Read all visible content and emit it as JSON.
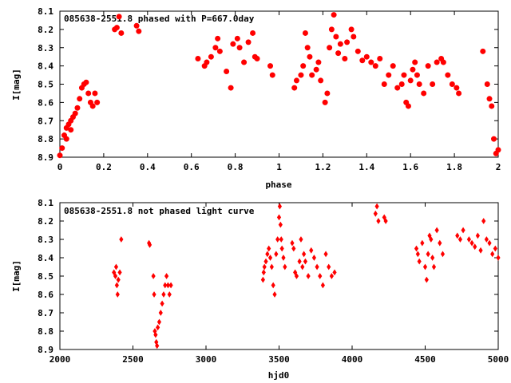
{
  "colors": {
    "points": "#ff0000",
    "axes": "#000000",
    "background": "#ffffff"
  },
  "chart_data": [
    {
      "type": "scatter",
      "title": "085638-2551.8 phased with P=667.0day",
      "xlabel": "phase",
      "ylabel": "I[mag]",
      "xlim": [
        0,
        2
      ],
      "ylim": [
        8.9,
        8.1
      ],
      "y_inverted": true,
      "grid": false,
      "legend": "none",
      "xticks": [
        0,
        0.2,
        0.4,
        0.6,
        0.8,
        1,
        1.2,
        1.4,
        1.6,
        1.8,
        2
      ],
      "xtick_labels": [
        "0",
        "0.2",
        "0.4",
        "0.6",
        "0.8",
        "1",
        "1.2",
        "1.4",
        "1.6",
        "1.8",
        "2"
      ],
      "yticks": [
        8.1,
        8.2,
        8.3,
        8.4,
        8.5,
        8.6,
        8.7,
        8.8,
        8.9
      ],
      "ytick_labels": [
        "8.1",
        "8.2",
        "8.3",
        "8.4",
        "8.5",
        "8.6",
        "8.7",
        "8.8",
        "8.9"
      ],
      "marker": "filled-circle",
      "x": [
        0.0,
        0.01,
        0.02,
        0.03,
        0.03,
        0.04,
        0.05,
        0.05,
        0.06,
        0.07,
        0.08,
        0.09,
        0.1,
        0.11,
        0.12,
        0.13,
        0.14,
        0.15,
        0.16,
        0.17,
        0.25,
        0.26,
        0.27,
        0.28,
        0.35,
        0.36,
        0.63,
        0.66,
        0.67,
        0.69,
        0.71,
        0.72,
        0.73,
        0.76,
        0.78,
        0.79,
        0.81,
        0.82,
        0.84,
        0.86,
        0.88,
        0.89,
        0.9,
        0.96,
        0.97,
        1.07,
        1.08,
        1.1,
        1.11,
        1.12,
        1.13,
        1.14,
        1.15,
        1.17,
        1.18,
        1.19,
        1.21,
        1.22,
        1.23,
        1.24,
        1.25,
        1.26,
        1.27,
        1.28,
        1.3,
        1.31,
        1.33,
        1.34,
        1.36,
        1.38,
        1.4,
        1.42,
        1.44,
        1.46,
        1.48,
        1.5,
        1.52,
        1.54,
        1.56,
        1.57,
        1.58,
        1.59,
        1.6,
        1.61,
        1.62,
        1.63,
        1.64,
        1.66,
        1.68,
        1.7,
        1.72,
        1.74,
        1.75,
        1.77,
        1.79,
        1.81,
        1.82,
        1.93,
        1.95,
        1.96,
        1.97,
        1.98,
        1.99,
        2.0
      ],
      "y": [
        8.89,
        8.85,
        8.78,
        8.8,
        8.74,
        8.72,
        8.7,
        8.75,
        8.68,
        8.66,
        8.63,
        8.58,
        8.52,
        8.5,
        8.49,
        8.55,
        8.6,
        8.62,
        8.55,
        8.6,
        8.2,
        8.19,
        8.13,
        8.22,
        8.18,
        8.21,
        8.36,
        8.4,
        8.38,
        8.35,
        8.3,
        8.25,
        8.32,
        8.43,
        8.52,
        8.28,
        8.25,
        8.3,
        8.38,
        8.27,
        8.22,
        8.35,
        8.36,
        8.4,
        8.45,
        8.52,
        8.48,
        8.45,
        8.4,
        8.22,
        8.3,
        8.35,
        8.45,
        8.42,
        8.38,
        8.48,
        8.6,
        8.55,
        8.3,
        8.2,
        8.12,
        8.24,
        8.33,
        8.28,
        8.36,
        8.27,
        8.2,
        8.24,
        8.32,
        8.37,
        8.35,
        8.38,
        8.4,
        8.36,
        8.5,
        8.45,
        8.4,
        8.52,
        8.5,
        8.45,
        8.6,
        8.62,
        8.48,
        8.42,
        8.38,
        8.45,
        8.5,
        8.55,
        8.4,
        8.5,
        8.38,
        8.36,
        8.38,
        8.45,
        8.5,
        8.52,
        8.55,
        8.32,
        8.5,
        8.58,
        8.62,
        8.8,
        8.88,
        8.86
      ]
    },
    {
      "type": "scatter",
      "title": "085638-2551.8 not phased light curve",
      "xlabel": "hjd0",
      "ylabel": "I[mag]",
      "xlim": [
        2000,
        5000
      ],
      "ylim": [
        8.9,
        8.1
      ],
      "y_inverted": true,
      "grid": false,
      "legend": "none",
      "xticks": [
        2000,
        2500,
        3000,
        3500,
        4000,
        4500,
        5000
      ],
      "xtick_labels": [
        "2000",
        "2500",
        "3000",
        "3500",
        "4000",
        "4500",
        "5000"
      ],
      "yticks": [
        8.1,
        8.2,
        8.3,
        8.4,
        8.5,
        8.6,
        8.7,
        8.8,
        8.9
      ],
      "ytick_labels": [
        "8.1",
        "8.2",
        "8.3",
        "8.4",
        "8.5",
        "8.6",
        "8.7",
        "8.8",
        "8.9"
      ],
      "marker": "small-diamond",
      "x": [
        2370,
        2380,
        2385,
        2390,
        2395,
        2400,
        2410,
        2420,
        2610,
        2615,
        2640,
        2645,
        2650,
        2655,
        2660,
        2665,
        2670,
        2680,
        2690,
        2700,
        2710,
        2720,
        2730,
        2740,
        2750,
        2760,
        3390,
        3395,
        3400,
        3410,
        3420,
        3430,
        3440,
        3450,
        3460,
        3470,
        3480,
        3490,
        3500,
        3505,
        3510,
        3515,
        3520,
        3530,
        3540,
        3590,
        3600,
        3610,
        3620,
        3640,
        3650,
        3660,
        3670,
        3680,
        3700,
        3720,
        3740,
        3760,
        3780,
        3800,
        3820,
        3840,
        3860,
        3880,
        4160,
        4170,
        4180,
        4220,
        4230,
        4440,
        4450,
        4460,
        4480,
        4500,
        4510,
        4520,
        4530,
        4540,
        4550,
        4560,
        4580,
        4600,
        4620,
        4720,
        4740,
        4760,
        4800,
        4820,
        4840,
        4860,
        4880,
        4900,
        4920,
        4940,
        4960,
        4980,
        5000
      ],
      "y": [
        8.48,
        8.5,
        8.45,
        8.55,
        8.6,
        8.52,
        8.48,
        8.3,
        8.32,
        8.33,
        8.5,
        8.6,
        8.8,
        8.82,
        8.86,
        8.88,
        8.78,
        8.75,
        8.7,
        8.65,
        8.6,
        8.55,
        8.5,
        8.55,
        8.6,
        8.55,
        8.52,
        8.48,
        8.45,
        8.42,
        8.38,
        8.35,
        8.4,
        8.45,
        8.55,
        8.6,
        8.38,
        8.3,
        8.18,
        8.12,
        8.22,
        8.3,
        8.35,
        8.4,
        8.45,
        8.32,
        8.35,
        8.48,
        8.5,
        8.42,
        8.3,
        8.45,
        8.38,
        8.42,
        8.5,
        8.36,
        8.4,
        8.45,
        8.5,
        8.55,
        8.38,
        8.45,
        8.5,
        8.48,
        8.16,
        8.12,
        8.2,
        8.18,
        8.2,
        8.35,
        8.38,
        8.42,
        8.32,
        8.45,
        8.52,
        8.38,
        8.28,
        8.3,
        8.4,
        8.45,
        8.25,
        8.32,
        8.38,
        8.28,
        8.3,
        8.25,
        8.3,
        8.32,
        8.34,
        8.28,
        8.36,
        8.2,
        8.3,
        8.32,
        8.38,
        8.35,
        8.4
      ]
    }
  ]
}
